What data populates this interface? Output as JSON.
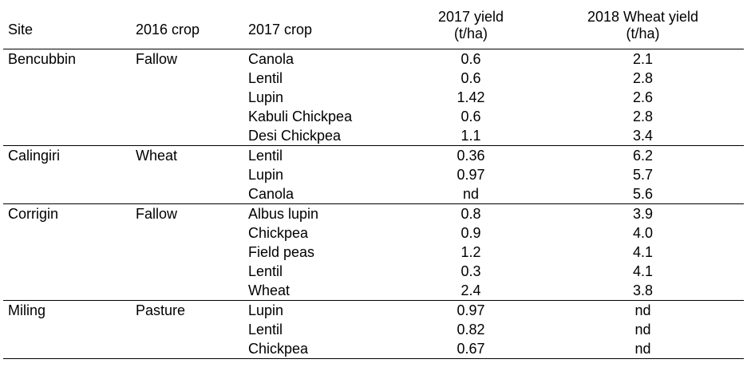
{
  "table": {
    "headers": {
      "site": "Site",
      "crop2016": "2016 crop",
      "crop2017": "2017 crop",
      "yield2017": "2017 yield",
      "yield2017_unit": "(t/ha)",
      "yield2018": "2018 Wheat yield",
      "yield2018_unit": "(t/ha)"
    },
    "groups": [
      {
        "site": "Bencubbin",
        "crop2016": "Fallow",
        "rows": [
          {
            "crop2017": "Canola",
            "yield2017": "0.6",
            "yield2018": "2.1"
          },
          {
            "crop2017": "Lentil",
            "yield2017": "0.6",
            "yield2018": "2.8"
          },
          {
            "crop2017": "Lupin",
            "yield2017": "1.42",
            "yield2018": "2.6"
          },
          {
            "crop2017": "Kabuli Chickpea",
            "yield2017": "0.6",
            "yield2018": "2.8"
          },
          {
            "crop2017": "Desi Chickpea",
            "yield2017": "1.1",
            "yield2018": "3.4"
          }
        ]
      },
      {
        "site": "Calingiri",
        "crop2016": "Wheat",
        "rows": [
          {
            "crop2017": "Lentil",
            "yield2017": "0.36",
            "yield2018": "6.2"
          },
          {
            "crop2017": "Lupin",
            "yield2017": "0.97",
            "yield2018": "5.7"
          },
          {
            "crop2017": "Canola",
            "yield2017": "nd",
            "yield2018": "5.6"
          }
        ]
      },
      {
        "site": "Corrigin",
        "crop2016": "Fallow",
        "rows": [
          {
            "crop2017": "Albus lupin",
            "yield2017": "0.8",
            "yield2018": "3.9"
          },
          {
            "crop2017": "Chickpea",
            "yield2017": "0.9",
            "yield2018": "4.0"
          },
          {
            "crop2017": "Field peas",
            "yield2017": "1.2",
            "yield2018": "4.1"
          },
          {
            "crop2017": "Lentil",
            "yield2017": "0.3",
            "yield2018": "4.1"
          },
          {
            "crop2017": "Wheat",
            "yield2017": "2.4",
            "yield2018": "3.8"
          }
        ]
      },
      {
        "site": "Miling",
        "crop2016": "Pasture",
        "rows": [
          {
            "crop2017": "Lupin",
            "yield2017": "0.97",
            "yield2018": "nd"
          },
          {
            "crop2017": "Lentil",
            "yield2017": "0.82",
            "yield2018": "nd"
          },
          {
            "crop2017": "Chickpea",
            "yield2017": "0.67",
            "yield2018": "nd"
          }
        ]
      }
    ]
  }
}
